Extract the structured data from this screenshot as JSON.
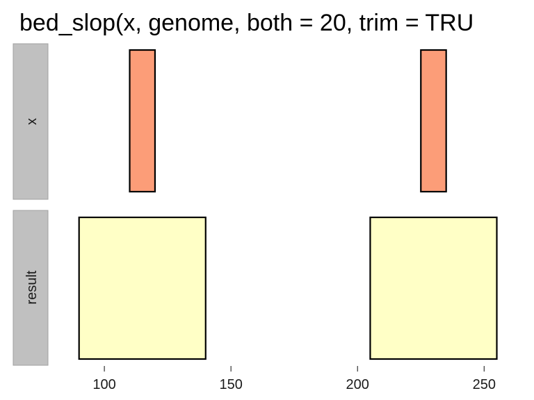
{
  "chart_data": {
    "type": "bar",
    "title": "bed_slop(x, genome, both = 20, trim = TRU",
    "x_ticks": [
      100,
      150,
      200,
      250
    ],
    "x_range": [
      78,
      262
    ],
    "panels": [
      {
        "label": "x",
        "fill": "#FC9D78",
        "intervals": [
          {
            "start": 110,
            "end": 120
          },
          {
            "start": 225,
            "end": 235
          }
        ]
      },
      {
        "label": "result",
        "fill": "#FFFFC6",
        "intervals": [
          {
            "start": 90,
            "end": 140
          },
          {
            "start": 205,
            "end": 255
          }
        ]
      }
    ],
    "grid": false,
    "legend": "none"
  },
  "colors": {
    "strip_bg": "#C0C0C0",
    "strip_border": "#A0A0A0",
    "outline": "#000000"
  }
}
